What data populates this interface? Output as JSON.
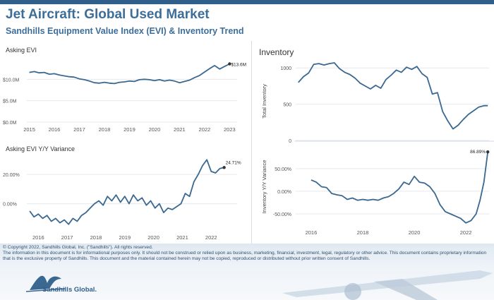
{
  "header": {
    "title": "Jet Aircraft:  Global Used Market",
    "subtitle": "Sandhills Equipment Value Index (EVI) & Inventory Trend"
  },
  "footer": {
    "copyright": "© Copyright 2022, Sandhills Global, Inc. (\"Sandhills\"). All rights reserved.",
    "disclaimer": "The information in this document is for informational purposes only.  It should not be construed or relied upon as business, marketing, financial, investment, legal, regulatory or other advice. This document contains proprietary information that is the exclusive property of Sandhills. This document and the material contained herein may not be copied, reproduced or distributed without prior written consent of Sandhills.",
    "logo_text": "Sandhills Global."
  },
  "colors": {
    "line": "#3a6891",
    "accent": "#2f5f8a",
    "grid": "#e6e9ed"
  },
  "panels": {
    "asking_evi_title": "Asking EVI",
    "asking_evi_yy_title": "Asking EVI Y/Y Variance",
    "inventory_title": "Inventory"
  },
  "chart_data": [
    {
      "id": "asking_evi",
      "type": "line",
      "title": "Asking EVI",
      "xlabel": "",
      "ylabel": "",
      "xlim": [
        2014.9,
        2023.3
      ],
      "ylim": [
        0,
        15
      ],
      "yticks": [
        0,
        5,
        10
      ],
      "ytick_labels": [
        "$0.0M",
        "$5.0M",
        "$10.0M"
      ],
      "xticks": [
        2015,
        2016,
        2017,
        2018,
        2019,
        2020,
        2021,
        2022,
        2023
      ],
      "xtick_labels": [
        "2015",
        "2016",
        "2017",
        "2018",
        "2019",
        "2020",
        "2021",
        "2022",
        "2023"
      ],
      "end_label": "$13.6M",
      "series": [
        {
          "x": [
            2015.0,
            2015.2,
            2015.4,
            2015.6,
            2015.8,
            2016.0,
            2016.2,
            2016.4,
            2016.6,
            2016.8,
            2017.0,
            2017.2,
            2017.4,
            2017.6,
            2017.8,
            2018.0,
            2018.2,
            2018.4,
            2018.6,
            2018.8,
            2019.0,
            2019.2,
            2019.4,
            2019.6,
            2019.8,
            2020.0,
            2020.2,
            2020.4,
            2020.6,
            2020.8,
            2021.0,
            2021.2,
            2021.4,
            2021.6,
            2021.8,
            2022.0,
            2022.2,
            2022.4,
            2022.6,
            2022.8,
            2023.0
          ],
          "values": [
            11.6,
            11.8,
            11.5,
            11.6,
            11.2,
            11.3,
            11.0,
            10.8,
            10.6,
            10.5,
            10.1,
            9.9,
            9.6,
            9.2,
            9.1,
            9.3,
            9.1,
            9.0,
            9.3,
            9.4,
            9.6,
            9.5,
            9.9,
            10.0,
            9.9,
            9.7,
            9.9,
            9.6,
            9.8,
            9.6,
            9.2,
            9.5,
            9.8,
            10.4,
            10.9,
            11.7,
            12.5,
            13.2,
            12.4,
            13.0,
            13.6
          ]
        }
      ]
    },
    {
      "id": "asking_evi_yy",
      "type": "line",
      "title": "Asking EVI Y/Y Variance",
      "xlabel": "",
      "ylabel": "",
      "xlim": [
        2015.6,
        2022.9
      ],
      "ylim": [
        -18,
        34
      ],
      "yticks": [
        0,
        20
      ],
      "ytick_labels": [
        "0.00%",
        "20.00%"
      ],
      "xticks": [
        2016,
        2017,
        2018,
        2019,
        2020,
        2021,
        2022
      ],
      "xtick_labels": [
        "2016",
        "2017",
        "2018",
        "2019",
        "2020",
        "2021",
        "2022"
      ],
      "end_label": "24.71%",
      "series": [
        {
          "x": [
            2015.7,
            2015.85,
            2016.0,
            2016.15,
            2016.3,
            2016.45,
            2016.6,
            2016.75,
            2016.9,
            2017.05,
            2017.2,
            2017.35,
            2017.5,
            2017.65,
            2017.8,
            2017.95,
            2018.1,
            2018.25,
            2018.4,
            2018.55,
            2018.7,
            2018.85,
            2019.0,
            2019.15,
            2019.3,
            2019.45,
            2019.6,
            2019.75,
            2019.9,
            2020.05,
            2020.2,
            2020.35,
            2020.5,
            2020.65,
            2020.8,
            2020.95,
            2021.1,
            2021.25,
            2021.4,
            2021.55,
            2021.7,
            2021.85,
            2022.0,
            2022.15,
            2022.3,
            2022.45
          ],
          "values": [
            -5,
            -9,
            -7,
            -10,
            -8,
            -12,
            -10,
            -13,
            -11,
            -14,
            -10,
            -12,
            -8,
            -6,
            -3,
            0,
            2,
            -1,
            5,
            2,
            6,
            1,
            5,
            0,
            6,
            2,
            4,
            -1,
            2,
            -3,
            0,
            -6,
            -3,
            -4,
            -2,
            0,
            7,
            5,
            15,
            20,
            26,
            30,
            22,
            21,
            24,
            24.71
          ]
        }
      ]
    },
    {
      "id": "inventory",
      "type": "line",
      "title": "Total Inventory",
      "xlabel": "",
      "ylabel": "Total Inventory",
      "xlim": [
        2015.4,
        2022.9
      ],
      "ylim": [
        0,
        1080
      ],
      "yticks": [
        0,
        500,
        1000
      ],
      "ytick_labels": [
        "0",
        "500",
        "1000"
      ],
      "series": [
        {
          "x": [
            2015.5,
            2015.7,
            2015.9,
            2016.1,
            2016.3,
            2016.5,
            2016.7,
            2016.9,
            2017.1,
            2017.3,
            2017.5,
            2017.7,
            2017.9,
            2018.1,
            2018.3,
            2018.5,
            2018.7,
            2018.9,
            2019.1,
            2019.3,
            2019.5,
            2019.7,
            2019.9,
            2020.1,
            2020.3,
            2020.5,
            2020.7,
            2020.9,
            2021.1,
            2021.3,
            2021.5,
            2021.7,
            2021.9,
            2022.1,
            2022.3,
            2022.5,
            2022.7,
            2022.85
          ],
          "values": [
            800,
            880,
            930,
            1050,
            1060,
            1040,
            1060,
            1070,
            990,
            940,
            910,
            860,
            790,
            750,
            710,
            760,
            720,
            840,
            900,
            970,
            940,
            1010,
            980,
            1020,
            920,
            870,
            640,
            660,
            400,
            270,
            160,
            210,
            290,
            360,
            410,
            460,
            480,
            480
          ]
        }
      ]
    },
    {
      "id": "inventory_yy",
      "type": "line",
      "title": "Inventory  Y/Y Variance",
      "xlabel": "",
      "ylabel": "Inventory  Y/Y Variance",
      "xlim": [
        2015.4,
        2022.9
      ],
      "ylim": [
        -75,
        95
      ],
      "yticks": [
        -50,
        0,
        50
      ],
      "ytick_labels": [
        "-50.00%",
        "0.00%",
        "50.00%"
      ],
      "xticks": [
        2016,
        2018,
        2020,
        2022
      ],
      "xtick_labels": [
        "2016",
        "2018",
        "2020",
        "2022"
      ],
      "end_label": "86.89%",
      "series": [
        {
          "x": [
            2016.0,
            2016.2,
            2016.4,
            2016.6,
            2016.8,
            2017.0,
            2017.2,
            2017.4,
            2017.6,
            2017.8,
            2018.0,
            2018.2,
            2018.4,
            2018.6,
            2018.8,
            2019.0,
            2019.2,
            2019.4,
            2019.6,
            2019.8,
            2020.0,
            2020.2,
            2020.4,
            2020.6,
            2020.8,
            2021.0,
            2021.2,
            2021.4,
            2021.6,
            2021.8,
            2022.0,
            2022.2,
            2022.4,
            2022.55,
            2022.7,
            2022.85
          ],
          "values": [
            25,
            20,
            10,
            8,
            -5,
            -8,
            -10,
            -18,
            -15,
            -20,
            -18,
            -20,
            -18,
            -20,
            -15,
            -12,
            -5,
            5,
            20,
            15,
            33,
            20,
            18,
            10,
            -5,
            -30,
            -45,
            -50,
            -55,
            -60,
            -70,
            -65,
            -50,
            -20,
            20,
            86.89
          ]
        }
      ]
    }
  ]
}
